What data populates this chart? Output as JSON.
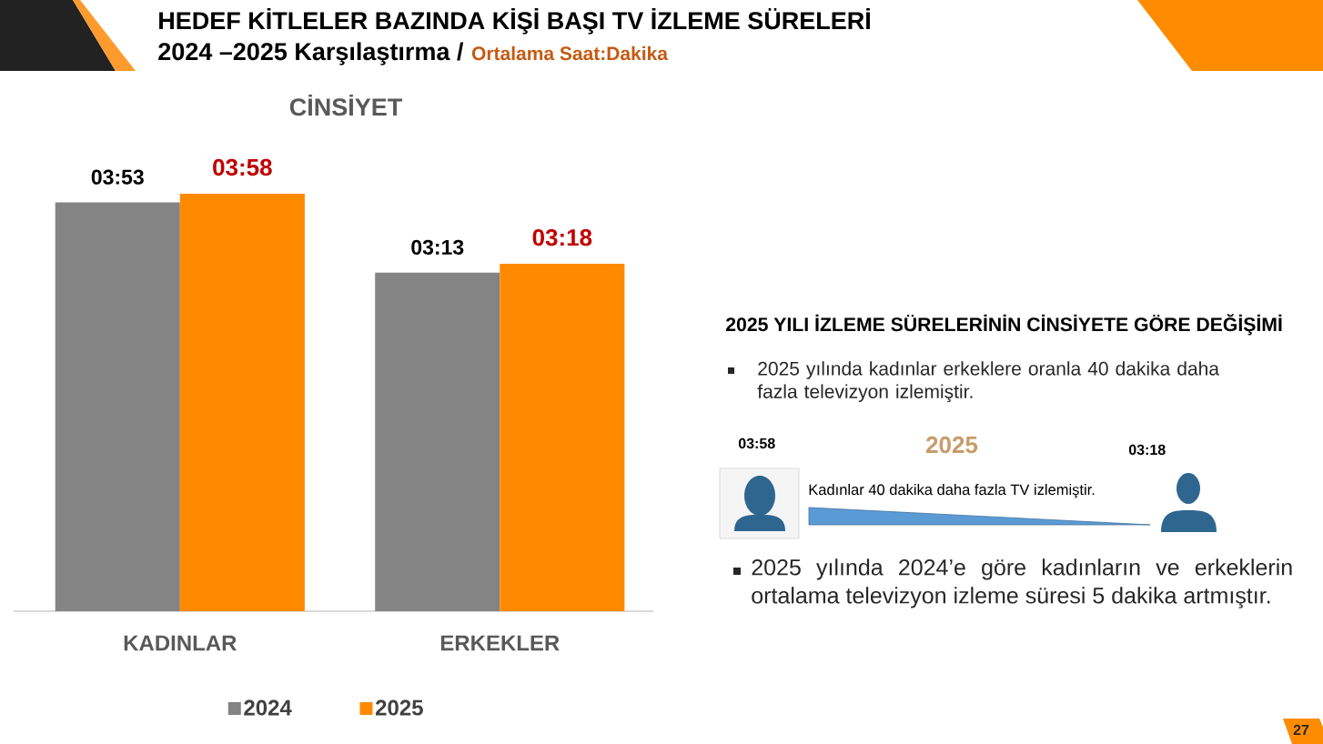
{
  "chart_data": {
    "type": "bar",
    "title": "HEDEF KİTLELER BAZINDA KİŞİ BAŞI TV İZLEME SÜRELERİ",
    "subtitle": "2024 –2025 Karşılaştırma /",
    "categories": [
      "KADINLAR",
      "ERKEKLER"
    ],
    "series": [
      {
        "name": "2024",
        "color": "#848484",
        "values": [
          233,
          193
        ],
        "value_labels": [
          "03:53",
          "03:13"
        ]
      },
      {
        "name": "2025",
        "color": "#ff8a00",
        "values": [
          238,
          198
        ],
        "value_labels": [
          "03:58",
          "03:18"
        ]
      }
    ],
    "legend": "bottom",
    "annotations": [
      "Ortalama Saat:Dakika",
      "CİNSİYET",
      "2025 YILI İZLEME SÜRELERİNİN CİNSİYETE GÖRE DEĞİŞİMİ",
      "2025 yılında kadınlar erkeklere oranla 40 dakika daha fazla televizyon izlemiştir.",
      "03:58",
      "2025",
      "03:18",
      "Kadınlar 40 dakika daha fazla TV izlemiştir.",
      "2025 yılında 2024’e göre kadınların ve erkeklerin ortalama televizyon izleme süresi 5 dakika artmıştır.",
      "27"
    ]
  }
}
